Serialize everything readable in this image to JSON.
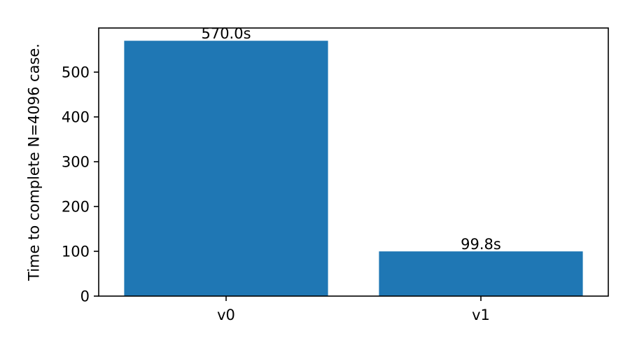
{
  "chart_data": {
    "type": "bar",
    "categories": [
      "v0",
      "v1"
    ],
    "values": [
      570.0,
      99.8
    ],
    "data_labels": [
      "570.0s",
      "99.8s"
    ],
    "title": "",
    "xlabel": "",
    "ylabel": "Time to complete N=4096 case.",
    "ylim": [
      0,
      598.5
    ],
    "yticks": [
      0,
      100,
      200,
      300,
      400,
      500
    ],
    "grid": false,
    "legend": "none",
    "bar_color": "#1f77b4"
  }
}
